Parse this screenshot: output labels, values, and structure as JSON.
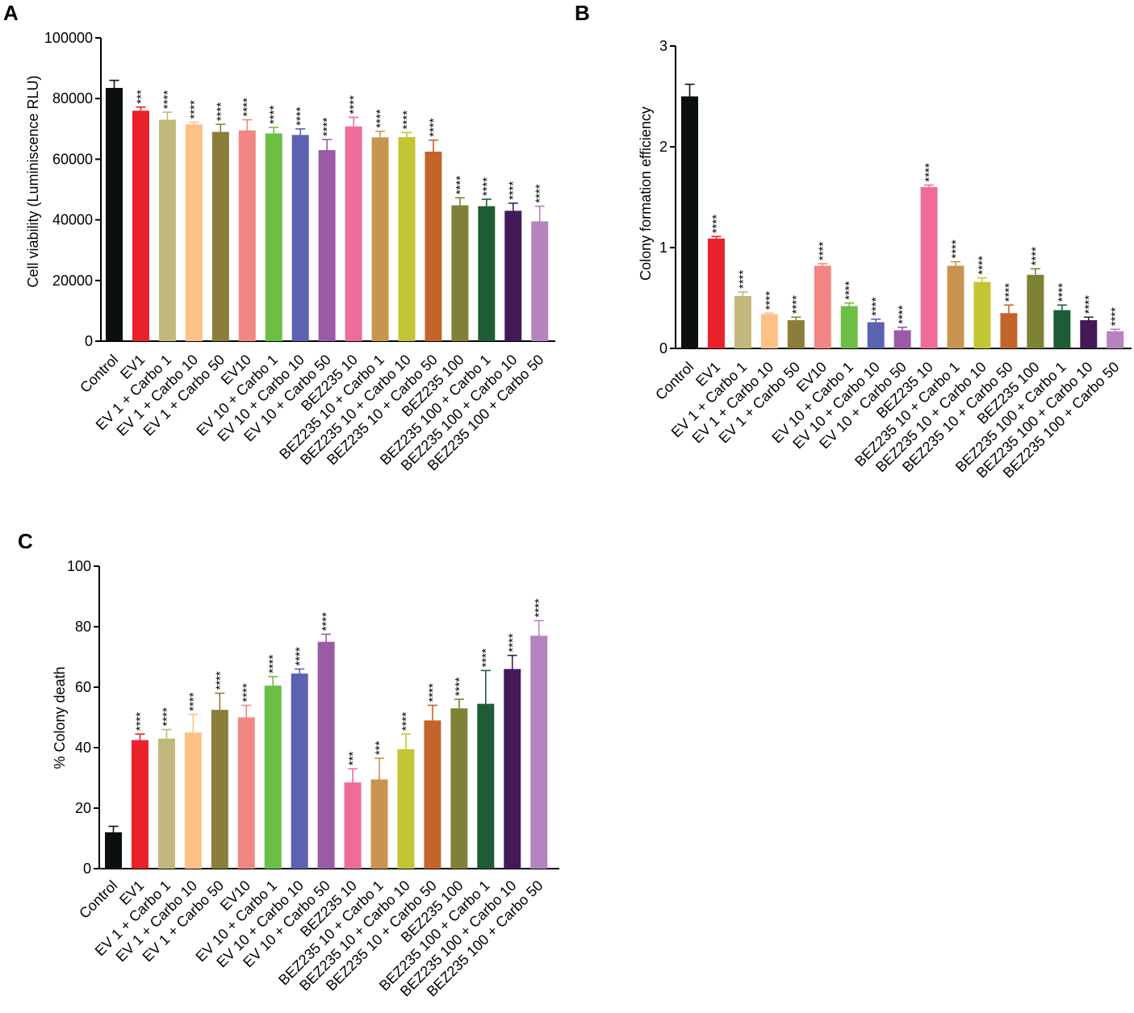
{
  "figure": {
    "categories": [
      "Control",
      "EV1",
      "EV 1 + Carbo 1",
      "EV 1 + Carbo 10",
      "EV 1 + Carbo 50",
      "EV10",
      "EV 10 + Carbo 1",
      "EV 10 + Carbo 10",
      "EV 10 + Carbo 50",
      "BEZ235 10",
      "BEZ235 10 + Carbo 1",
      "BEZ235 10 + Carbo 10",
      "BEZ235 10 + Carbo 50",
      "BEZ235 100",
      "BEZ235 100 + Carbo 1",
      "BEZ235 100 + Carbo 10",
      "BEZ235 100 + Carbo 50"
    ],
    "bar_colors": [
      "#0b0f0d",
      "#e9212a",
      "#c2b77c",
      "#fbc187",
      "#8b7d3a",
      "#f28683",
      "#6cbe45",
      "#5b62b0",
      "#9a5aa6",
      "#ef6b9b",
      "#c8944f",
      "#c3c535",
      "#c3652b",
      "#7f8137",
      "#1e5c35",
      "#44195a",
      "#b583bd"
    ]
  },
  "chart_data": [
    {
      "panel": "A",
      "type": "bar",
      "title": "",
      "xlabel": "",
      "ylabel": "Cell viability (Luminiscence RLU)",
      "ylim": [
        0,
        100000
      ],
      "yticks": [
        "0",
        "20000",
        "40000",
        "60000",
        "80000",
        "100000"
      ],
      "ytick_values": [
        0,
        20000,
        40000,
        60000,
        80000,
        100000
      ],
      "values": [
        83500,
        76000,
        73000,
        71500,
        69000,
        69500,
        68500,
        68000,
        63000,
        70800,
        67200,
        67300,
        62500,
        44800,
        44500,
        43000,
        39500
      ],
      "errors": [
        2500,
        1200,
        2500,
        700,
        2500,
        3500,
        2000,
        2000,
        3500,
        3000,
        2000,
        1500,
        3800,
        2500,
        2300,
        2500,
        5000
      ],
      "significance": [
        "",
        "***",
        "****",
        "****",
        "****",
        "****",
        "****",
        "****",
        "****",
        "****",
        "****",
        "****",
        "****",
        "****",
        "****",
        "****",
        "****"
      ]
    },
    {
      "panel": "B",
      "type": "bar",
      "title": "",
      "xlabel": "",
      "ylabel": "Colony formation efficiency",
      "ylim": [
        0,
        3
      ],
      "yticks": [
        "0",
        "1",
        "2",
        "3"
      ],
      "ytick_values": [
        0,
        1,
        2,
        3
      ],
      "values": [
        2.5,
        1.09,
        0.52,
        0.34,
        0.28,
        0.82,
        0.42,
        0.26,
        0.18,
        1.6,
        0.82,
        0.66,
        0.35,
        0.73,
        0.38,
        0.28,
        0.17
      ],
      "errors": [
        0.12,
        0.02,
        0.04,
        0.01,
        0.03,
        0.02,
        0.03,
        0.03,
        0.03,
        0.02,
        0.04,
        0.04,
        0.08,
        0.06,
        0.05,
        0.03,
        0.02
      ],
      "significance": [
        "",
        "****",
        "****",
        "****",
        "****",
        "****",
        "****",
        "****",
        "****",
        "****",
        "****",
        "****",
        "****",
        "****",
        "****",
        "****",
        "****"
      ]
    },
    {
      "panel": "C",
      "type": "bar",
      "title": "",
      "xlabel": "",
      "ylabel": "% Colony death",
      "ylim": [
        0,
        100
      ],
      "yticks": [
        "0",
        "20",
        "40",
        "60",
        "80",
        "100"
      ],
      "ytick_values": [
        0,
        20,
        40,
        60,
        80,
        100
      ],
      "values": [
        12,
        42.5,
        43,
        45,
        52.5,
        50,
        60.5,
        64.5,
        75,
        28.5,
        29.5,
        39.5,
        49,
        53,
        54.5,
        66,
        77
      ],
      "errors": [
        2,
        2,
        3,
        6,
        5.5,
        4,
        3,
        1.5,
        2.5,
        4.5,
        7,
        5,
        5,
        3,
        11,
        4.5,
        5
      ],
      "significance": [
        "",
        "****",
        "****",
        "****",
        "****",
        "****",
        "****",
        "****",
        "****",
        "***",
        "***",
        "****",
        "****",
        "****",
        "****",
        "****",
        "****"
      ]
    }
  ]
}
